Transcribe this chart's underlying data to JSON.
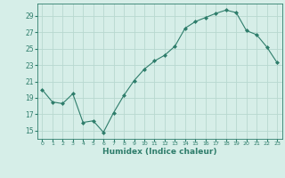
{
  "x": [
    0,
    1,
    2,
    3,
    4,
    5,
    6,
    7,
    8,
    9,
    10,
    11,
    12,
    13,
    14,
    15,
    16,
    17,
    18,
    19,
    20,
    21,
    22,
    23
  ],
  "y": [
    20.0,
    18.5,
    18.3,
    19.5,
    16.0,
    16.2,
    14.8,
    17.2,
    19.3,
    21.1,
    22.5,
    23.5,
    24.2,
    25.3,
    27.5,
    28.3,
    28.8,
    29.3,
    29.7,
    29.4,
    27.2,
    26.7,
    25.2,
    23.3
  ],
  "line_color": "#2e7d6b",
  "marker": "D",
  "marker_size": 2,
  "bg_color": "#d6eee8",
  "grid_color": "#b8d8d0",
  "tick_color": "#2e7d6b",
  "xlabel": "Humidex (Indice chaleur)",
  "xlabel_fontsize": 6.5,
  "yticks": [
    15,
    17,
    19,
    21,
    23,
    25,
    27,
    29
  ],
  "ylim": [
    14.0,
    30.5
  ],
  "xlim": [
    -0.5,
    23.5
  ]
}
